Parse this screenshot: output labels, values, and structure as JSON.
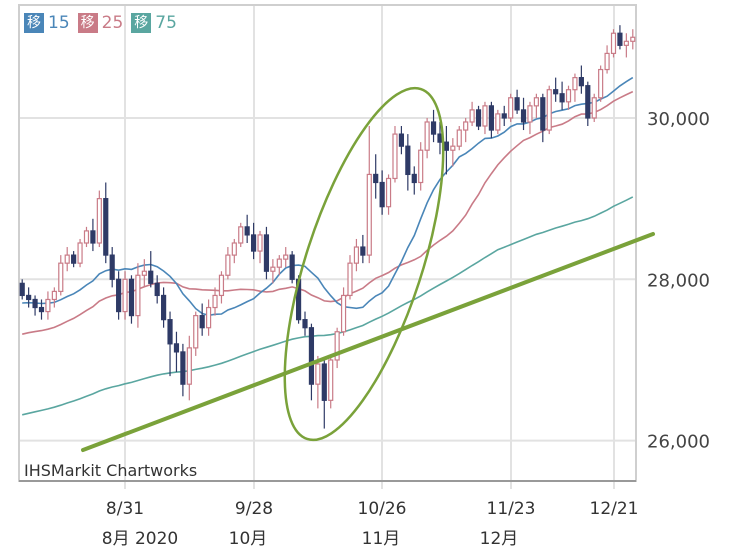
{
  "legend": [
    {
      "badge": "移",
      "value": "15",
      "color": "#4a86b8"
    },
    {
      "badge": "移",
      "value": "25",
      "color": "#c97b87"
    },
    {
      "badge": "移",
      "value": "75",
      "color": "#5aa6a0"
    }
  ],
  "credit": "IHSMarkit Chartworks",
  "chart_data": {
    "type": "candlestick",
    "y_axis": {
      "ticks": [
        26000,
        28000,
        30000
      ],
      "tick_labels": [
        "26,000",
        "28,000",
        "30,000"
      ],
      "side": "right",
      "ylim": [
        25500,
        31400
      ]
    },
    "x_axis": {
      "tick_labels": [
        "8/31",
        "9/28",
        "10/26",
        "11/23",
        "12/21"
      ],
      "month_labels": [
        "8月 2020",
        "10月",
        "11月",
        "12月"
      ]
    },
    "colors": {
      "up": "#c97b87",
      "down": "#2e3a66",
      "ma15": "#4a86b8",
      "ma25": "#c97b87",
      "ma75": "#5aa6a0",
      "annotation": "#7aa23a"
    },
    "ohlc": [
      [
        27950,
        28000,
        27750,
        27800
      ],
      [
        27800,
        27900,
        27650,
        27750
      ],
      [
        27750,
        27800,
        27550,
        27650
      ],
      [
        27650,
        27750,
        27500,
        27600
      ],
      [
        27600,
        27850,
        27500,
        27750
      ],
      [
        27750,
        27900,
        27650,
        27850
      ],
      [
        27850,
        28300,
        27800,
        28200
      ],
      [
        28200,
        28400,
        28100,
        28300
      ],
      [
        28300,
        28350,
        28150,
        28200
      ],
      [
        28200,
        28500,
        28150,
        28450
      ],
      [
        28450,
        28650,
        28400,
        28600
      ],
      [
        28600,
        28750,
        28350,
        28450
      ],
      [
        28450,
        29100,
        28400,
        29000
      ],
      [
        29000,
        29200,
        28200,
        28300
      ],
      [
        28300,
        28400,
        27900,
        28000
      ],
      [
        28000,
        28100,
        27500,
        27600
      ],
      [
        27600,
        28100,
        27500,
        28000
      ],
      [
        28000,
        28050,
        27450,
        27550
      ],
      [
        27550,
        28200,
        27400,
        28050
      ],
      [
        28050,
        28250,
        27900,
        28100
      ],
      [
        28100,
        28350,
        27900,
        27950
      ],
      [
        27950,
        28050,
        27700,
        27800
      ],
      [
        27800,
        27900,
        27400,
        27500
      ],
      [
        27500,
        27600,
        26800,
        27200
      ],
      [
        27200,
        27350,
        26850,
        27100
      ],
      [
        27100,
        27200,
        26550,
        26700
      ],
      [
        26700,
        27300,
        26500,
        27150
      ],
      [
        27150,
        27600,
        27050,
        27550
      ],
      [
        27550,
        27700,
        27300,
        27400
      ],
      [
        27400,
        27750,
        27300,
        27650
      ],
      [
        27650,
        27900,
        27550,
        27800
      ],
      [
        27800,
        28100,
        27700,
        28050
      ],
      [
        28050,
        28400,
        28000,
        28300
      ],
      [
        28300,
        28500,
        28200,
        28450
      ],
      [
        28450,
        28700,
        28400,
        28650
      ],
      [
        28650,
        28800,
        28450,
        28550
      ],
      [
        28550,
        28700,
        28250,
        28350
      ],
      [
        28350,
        28600,
        28200,
        28550
      ],
      [
        28550,
        28650,
        28000,
        28100
      ],
      [
        28100,
        28250,
        27950,
        28150
      ],
      [
        28150,
        28300,
        28050,
        28250
      ],
      [
        28250,
        28400,
        28150,
        28300
      ],
      [
        28300,
        28350,
        27950,
        28000
      ],
      [
        28000,
        28050,
        27450,
        27500
      ],
      [
        27500,
        27600,
        27300,
        27400
      ],
      [
        27400,
        27450,
        26500,
        26700
      ],
      [
        26700,
        27050,
        26400,
        26950
      ],
      [
        26950,
        27000,
        26150,
        26500
      ],
      [
        26500,
        27050,
        26400,
        27000
      ],
      [
        27000,
        27400,
        26900,
        27350
      ],
      [
        27350,
        27900,
        27300,
        27800
      ],
      [
        27800,
        28300,
        27750,
        28200
      ],
      [
        28200,
        28500,
        28100,
        28400
      ],
      [
        28400,
        28550,
        28200,
        28300
      ],
      [
        28300,
        29900,
        28200,
        29300
      ],
      [
        29300,
        29550,
        29000,
        29200
      ],
      [
        29200,
        29350,
        28800,
        28900
      ],
      [
        28900,
        29300,
        28800,
        29250
      ],
      [
        29250,
        29900,
        29200,
        29800
      ],
      [
        29800,
        29900,
        29550,
        29650
      ],
      [
        29650,
        29800,
        29100,
        29300
      ],
      [
        29300,
        29400,
        29050,
        29200
      ],
      [
        29200,
        29700,
        29100,
        29600
      ],
      [
        29600,
        30000,
        29500,
        29950
      ],
      [
        29950,
        30100,
        29700,
        29800
      ],
      [
        29800,
        29950,
        29550,
        29700
      ],
      [
        29700,
        29900,
        29300,
        29600
      ],
      [
        29600,
        29750,
        29400,
        29650
      ],
      [
        29650,
        29900,
        29600,
        29850
      ],
      [
        29850,
        30000,
        29700,
        29950
      ],
      [
        29950,
        30200,
        29900,
        30100
      ],
      [
        30100,
        30150,
        29850,
        29900
      ],
      [
        29900,
        30200,
        29800,
        30150
      ],
      [
        30150,
        30200,
        29750,
        29850
      ],
      [
        29850,
        30100,
        29800,
        30050
      ],
      [
        30050,
        30150,
        29900,
        30000
      ],
      [
        30000,
        30300,
        29950,
        30250
      ],
      [
        30250,
        30350,
        30050,
        30100
      ],
      [
        30100,
        30250,
        29850,
        29950
      ],
      [
        29950,
        30200,
        29800,
        30150
      ],
      [
        30150,
        30300,
        30000,
        30250
      ],
      [
        30250,
        30300,
        29700,
        29850
      ],
      [
        29850,
        30400,
        29800,
        30350
      ],
      [
        30350,
        30500,
        30200,
        30300
      ],
      [
        30300,
        30450,
        30100,
        30200
      ],
      [
        30200,
        30400,
        30100,
        30350
      ],
      [
        30350,
        30550,
        30200,
        30500
      ],
      [
        30500,
        30650,
        30300,
        30400
      ],
      [
        30400,
        30450,
        29900,
        30000
      ],
      [
        30000,
        30300,
        29950,
        30250
      ],
      [
        30250,
        30650,
        30200,
        30600
      ],
      [
        30600,
        30900,
        30550,
        30800
      ],
      [
        30800,
        31100,
        30750,
        31050
      ],
      [
        31050,
        31150,
        30850,
        30900
      ],
      [
        30900,
        31050,
        30750,
        30950
      ],
      [
        30950,
        31100,
        30850,
        31000
      ]
    ],
    "annotation": {
      "trendline": {
        "from": [
          0.052,
          25650
        ],
        "to": [
          1.05,
          28600
        ]
      },
      "ellipse_label": ""
    }
  }
}
